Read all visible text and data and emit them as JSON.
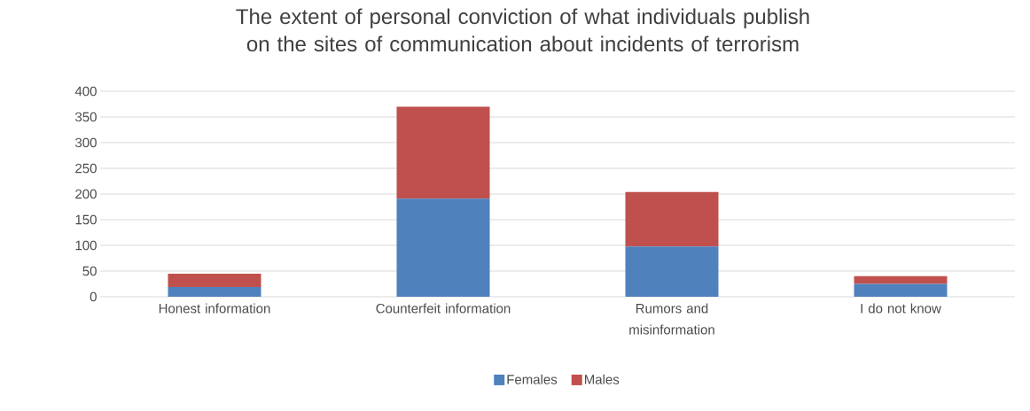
{
  "chart_data": {
    "type": "bar",
    "title": "The extent of personal conviction of what individuals publish on the sites of communication about incidents of terrorism",
    "categories": [
      "Honest information",
      "Counterfeit information",
      "Rumors and misinformation",
      "I do not know"
    ],
    "series": [
      {
        "name": "Females",
        "color": "#4f81bd",
        "values": [
          19,
          191,
          98,
          25
        ]
      },
      {
        "name": "Males",
        "color": "#c0504d",
        "values": [
          26,
          179,
          106,
          15
        ]
      }
    ],
    "stacked": true,
    "ylim": [
      0,
      400
    ],
    "yticks": [
      0,
      50,
      100,
      150,
      200,
      250,
      300,
      350,
      400
    ],
    "grid": "y",
    "legend": "bottom"
  }
}
